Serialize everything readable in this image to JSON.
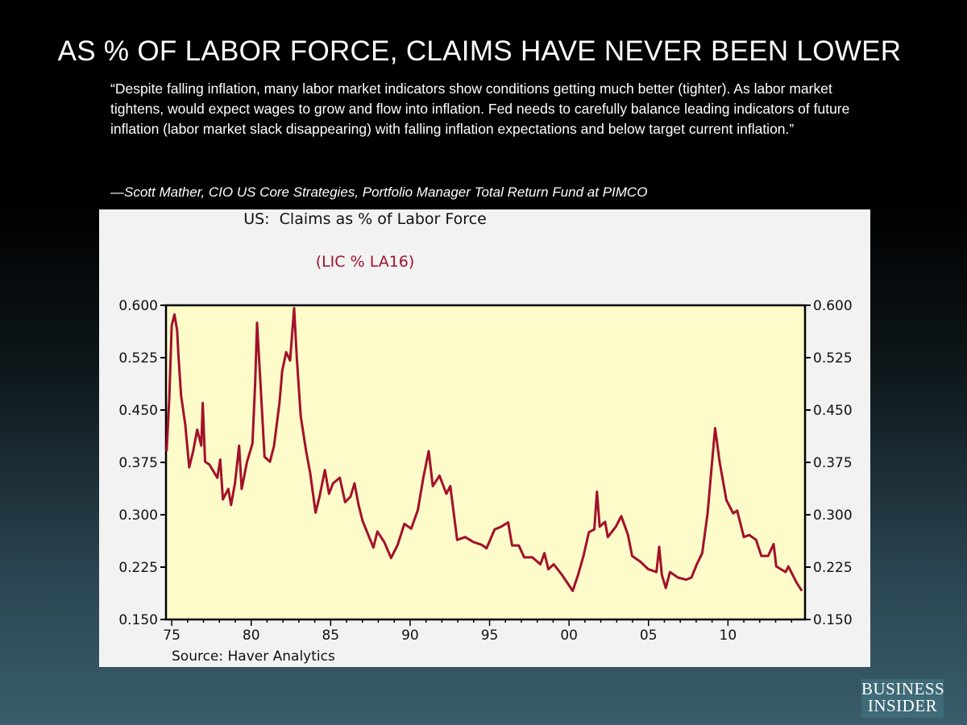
{
  "slide": {
    "title": "AS % OF LABOR FORCE, CLAIMS HAVE NEVER BEEN LOWER",
    "quote": "“Despite falling inflation, many labor market indicators show conditions getting much better (tighter). As labor market tightens, would expect wages to grow and flow into inflation. Fed needs to carefully balance leading indicators of future inflation (labor market slack disappearing) with falling inflation expectations and below target current inflation.”",
    "attribution": "—Scott Mather, CIO US Core Strategies, Portfolio Manager Total Return Fund at PIMCO",
    "logo": "BUSINESS INSIDER"
  },
  "chart_data": {
    "type": "line",
    "title": "US:  Claims as % of Labor Force",
    "subtitle": "(LIC % LA16)",
    "source": "Source: Haver Analytics",
    "xlim": [
      1974.64,
      2014.85
    ],
    "ylim": [
      0.15,
      0.6
    ],
    "y_ticks": [
      "0.150",
      "0.225",
      "0.300",
      "0.375",
      "0.450",
      "0.525",
      "0.600"
    ],
    "x_ticks": [
      {
        "year": 1975,
        "label": "75"
      },
      {
        "year": 1980,
        "label": "80"
      },
      {
        "year": 1985,
        "label": "85"
      },
      {
        "year": 1990,
        "label": "90"
      },
      {
        "year": 1995,
        "label": "95"
      },
      {
        "year": 2000,
        "label": "00"
      },
      {
        "year": 2005,
        "label": "05"
      },
      {
        "year": 2010,
        "label": "10"
      }
    ],
    "colors": {
      "line": "#a3102b",
      "plot_bg": "#fdfbc9",
      "panel_bg": "#f2f2f2",
      "subtitle": "#a3102b"
    },
    "grid": false,
    "series": [
      {
        "x": [
          1974.68,
          1974.85,
          1975.0,
          1975.17,
          1975.34,
          1975.42,
          1975.59,
          1975.85,
          1976.1,
          1976.35,
          1976.6,
          1976.86,
          1976.95,
          1977.1,
          1977.37,
          1977.87,
          1978.05,
          1978.22,
          1978.56,
          1978.73,
          1978.98,
          1979.24,
          1979.4,
          1979.74,
          1980.08,
          1980.25,
          1980.37,
          1980.59,
          1980.84,
          1981.18,
          1981.44,
          1981.78,
          1981.95,
          1982.2,
          1982.45,
          1982.7,
          1982.87,
          1983.12,
          1983.46,
          1983.71,
          1984.05,
          1984.3,
          1984.64,
          1984.9,
          1985.15,
          1985.57,
          1985.91,
          1986.25,
          1986.5,
          1986.76,
          1987.01,
          1987.35,
          1987.69,
          1987.94,
          1988.37,
          1988.8,
          1989.22,
          1989.64,
          1990.07,
          1990.49,
          1990.83,
          1991.17,
          1991.43,
          1991.85,
          1992.28,
          1992.53,
          1992.79,
          1992.96,
          1993.47,
          1993.98,
          1994.5,
          1994.81,
          1995.32,
          1995.74,
          1996.17,
          1996.42,
          1996.84,
          1997.18,
          1997.69,
          1998.2,
          1998.45,
          1998.7,
          1999.04,
          1999.55,
          2000.23,
          2000.57,
          2000.91,
          2001.25,
          2001.59,
          2001.76,
          2001.93,
          2002.27,
          2002.44,
          2002.95,
          2003.29,
          2003.71,
          2003.97,
          2004.48,
          2004.99,
          2005.5,
          2005.67,
          2005.84,
          2006.09,
          2006.35,
          2006.86,
          2007.36,
          2007.7,
          2008.04,
          2008.38,
          2008.72,
          2008.97,
          2009.19,
          2009.48,
          2009.9,
          2010.33,
          2010.58,
          2011.0,
          2011.34,
          2011.77,
          2012.1,
          2012.53,
          2012.87,
          2013.04,
          2013.63,
          2013.8,
          2014.31,
          2014.65
        ],
        "y": [
          0.391,
          0.468,
          0.571,
          0.587,
          0.564,
          0.529,
          0.471,
          0.429,
          0.368,
          0.391,
          0.422,
          0.399,
          0.46,
          0.376,
          0.372,
          0.353,
          0.379,
          0.322,
          0.337,
          0.314,
          0.345,
          0.399,
          0.337,
          0.376,
          0.402,
          0.487,
          0.575,
          0.487,
          0.383,
          0.376,
          0.399,
          0.46,
          0.506,
          0.533,
          0.521,
          0.596,
          0.525,
          0.441,
          0.391,
          0.36,
          0.303,
          0.326,
          0.364,
          0.33,
          0.345,
          0.353,
          0.318,
          0.326,
          0.345,
          0.314,
          0.291,
          0.272,
          0.253,
          0.276,
          0.261,
          0.238,
          0.257,
          0.287,
          0.28,
          0.307,
          0.353,
          0.391,
          0.341,
          0.356,
          0.33,
          0.341,
          0.295,
          0.264,
          0.268,
          0.261,
          0.257,
          0.252,
          0.279,
          0.283,
          0.289,
          0.256,
          0.256,
          0.239,
          0.239,
          0.229,
          0.245,
          0.222,
          0.229,
          0.214,
          0.191,
          0.214,
          0.241,
          0.275,
          0.279,
          0.333,
          0.283,
          0.29,
          0.268,
          0.283,
          0.298,
          0.271,
          0.241,
          0.233,
          0.222,
          0.218,
          0.254,
          0.214,
          0.195,
          0.218,
          0.21,
          0.207,
          0.21,
          0.229,
          0.245,
          0.302,
          0.367,
          0.424,
          0.375,
          0.321,
          0.302,
          0.306,
          0.268,
          0.271,
          0.264,
          0.241,
          0.241,
          0.258,
          0.226,
          0.218,
          0.226,
          0.203,
          0.191
        ]
      }
    ]
  }
}
